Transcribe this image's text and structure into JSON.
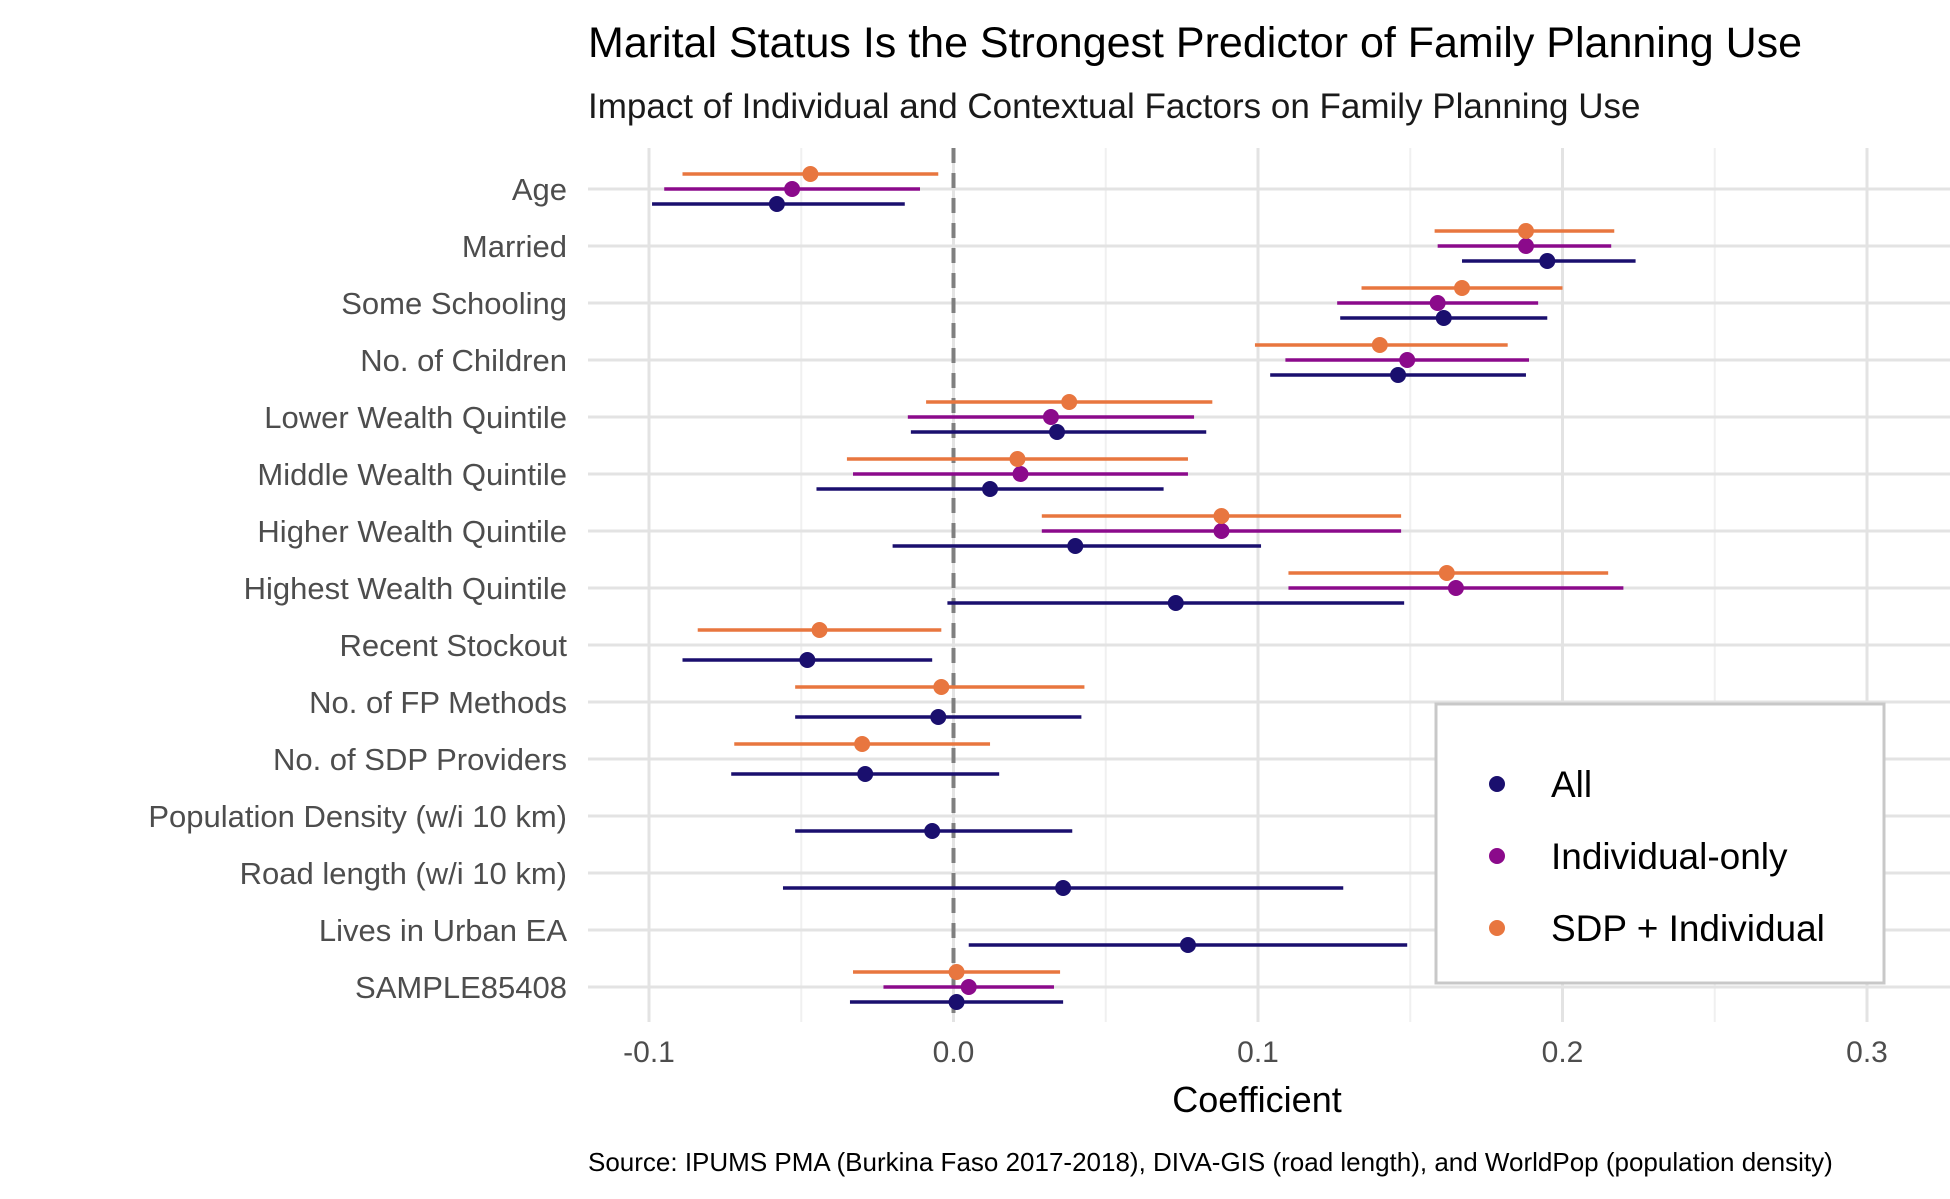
{
  "chart_data": {
    "type": "scatter",
    "title": "Marital Status Is the Strongest Predictor of Family Planning Use",
    "subtitle": "Impact of Individual and Contextual Factors on Family Planning Use",
    "xlabel": "Coefficient",
    "ylabel": "",
    "caption": "Source: IPUMS PMA (Burkina Faso 2017-2018), DIVA-GIS (road length), and WorldPop (population density)",
    "xlim": [
      -0.1,
      0.3
    ],
    "x_ticks": [
      -0.1,
      0.0,
      0.1,
      0.2,
      0.3
    ],
    "x_tick_labels": [
      "-0.1",
      "0.0",
      "0.1",
      "0.2",
      "0.3"
    ],
    "reference_line": 0,
    "grid": true,
    "legend_position": "bottom-right",
    "categories": [
      "Age",
      "Married",
      "Some Schooling",
      "No. of Children",
      "Lower Wealth Quintile",
      "Middle Wealth Quintile",
      "Higher Wealth Quintile",
      "Highest Wealth Quintile",
      "Recent Stockout",
      "No. of FP Methods",
      "No. of SDP Providers",
      "Population Density (w/i 10 km)",
      "Road length (w/i 10 km)",
      "Lives in Urban EA",
      "SAMPLE85408"
    ],
    "series": [
      {
        "name": "All",
        "color": "#1a0f6e",
        "estimates": [
          -0.058,
          0.195,
          0.161,
          0.146,
          0.034,
          0.012,
          0.04,
          0.073,
          -0.048,
          -0.005,
          -0.029,
          -0.007,
          0.036,
          0.077,
          0.001
        ],
        "lower": [
          -0.099,
          0.167,
          0.127,
          0.104,
          -0.014,
          -0.045,
          -0.02,
          -0.002,
          -0.089,
          -0.052,
          -0.073,
          -0.052,
          -0.056,
          0.005,
          -0.034
        ],
        "upper": [
          -0.016,
          0.224,
          0.195,
          0.188,
          0.083,
          0.069,
          0.101,
          0.148,
          -0.007,
          0.042,
          0.015,
          0.039,
          0.128,
          0.149,
          0.036
        ]
      },
      {
        "name": "Individual-only",
        "color": "#8b0a8b",
        "estimates": [
          -0.053,
          0.188,
          0.159,
          0.149,
          0.032,
          0.022,
          0.088,
          0.165,
          null,
          null,
          null,
          null,
          null,
          null,
          0.005
        ],
        "lower": [
          -0.095,
          0.159,
          0.126,
          0.109,
          -0.015,
          -0.033,
          0.029,
          0.11,
          null,
          null,
          null,
          null,
          null,
          null,
          -0.023
        ],
        "upper": [
          -0.011,
          0.216,
          0.192,
          0.189,
          0.079,
          0.077,
          0.147,
          0.22,
          null,
          null,
          null,
          null,
          null,
          null,
          0.033
        ]
      },
      {
        "name": "SDP + Individual",
        "color": "#e8763f",
        "estimates": [
          -0.047,
          0.188,
          0.167,
          0.14,
          0.038,
          0.021,
          0.088,
          0.162,
          -0.044,
          -0.004,
          -0.03,
          null,
          null,
          null,
          0.001
        ],
        "lower": [
          -0.089,
          0.158,
          0.134,
          0.099,
          -0.009,
          -0.035,
          0.029,
          0.11,
          -0.084,
          -0.052,
          -0.072,
          null,
          null,
          null,
          -0.033
        ],
        "upper": [
          -0.005,
          0.217,
          0.2,
          0.182,
          0.085,
          0.077,
          0.147,
          0.215,
          -0.004,
          0.043,
          0.012,
          null,
          null,
          null,
          0.035
        ]
      }
    ]
  }
}
